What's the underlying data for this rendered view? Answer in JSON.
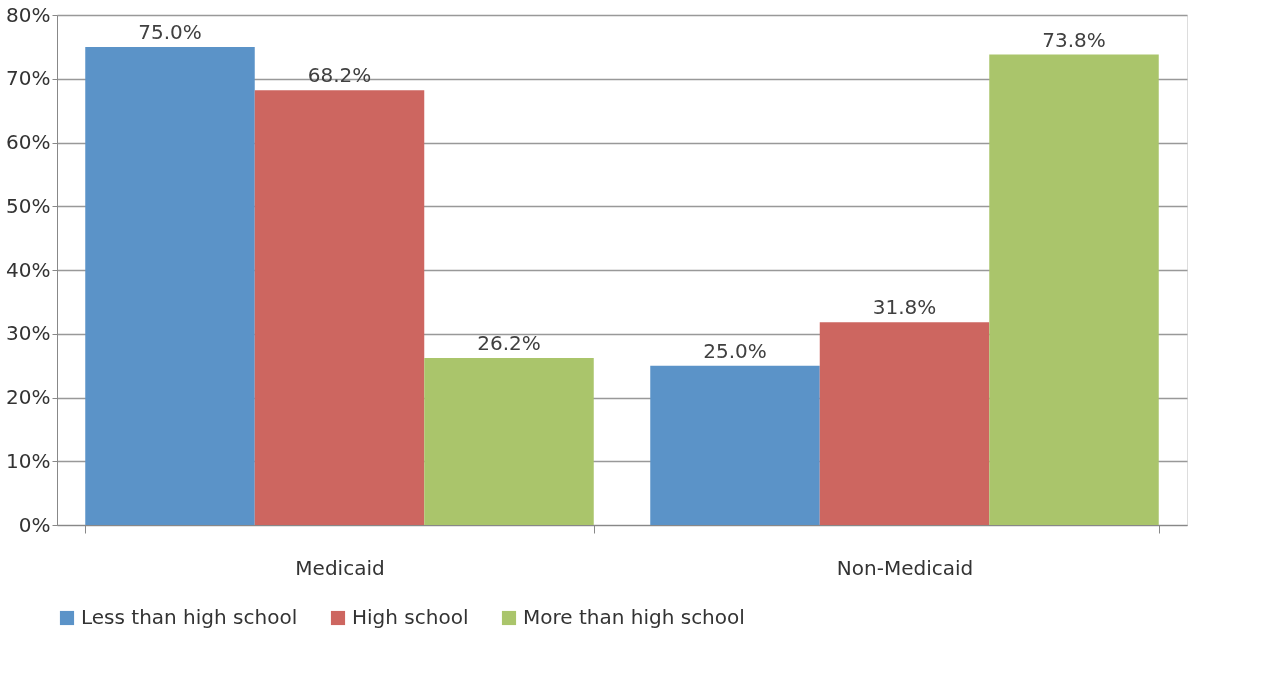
{
  "chart_data": {
    "type": "bar",
    "categories": [
      "Medicaid",
      "Non-Medicaid"
    ],
    "series": [
      {
        "name": "Less than high school",
        "color": "#5b93c8",
        "values": [
          75.0,
          25.0
        ],
        "value_labels": [
          "75.0%",
          "25.0%"
        ]
      },
      {
        "name": "High school",
        "color": "#cd6660",
        "values": [
          68.2,
          31.8
        ],
        "value_labels": [
          "68.2%",
          "31.8%"
        ]
      },
      {
        "name": "More than high school",
        "color": "#aac56b",
        "values": [
          26.2,
          73.8
        ],
        "value_labels": [
          "26.2%",
          "73.8%"
        ]
      }
    ],
    "ylim": [
      0,
      80
    ],
    "yticks": [
      {
        "value": 0,
        "label": "0%"
      },
      {
        "value": 10,
        "label": "10%"
      },
      {
        "value": 20,
        "label": "20%"
      },
      {
        "value": 30,
        "label": "30%"
      },
      {
        "value": 40,
        "label": "40%"
      },
      {
        "value": 50,
        "label": "50%"
      },
      {
        "value": 60,
        "label": "60%"
      },
      {
        "value": 70,
        "label": "70%"
      },
      {
        "value": 80,
        "label": "80%"
      }
    ],
    "grid": "y",
    "legend": "bottom"
  }
}
